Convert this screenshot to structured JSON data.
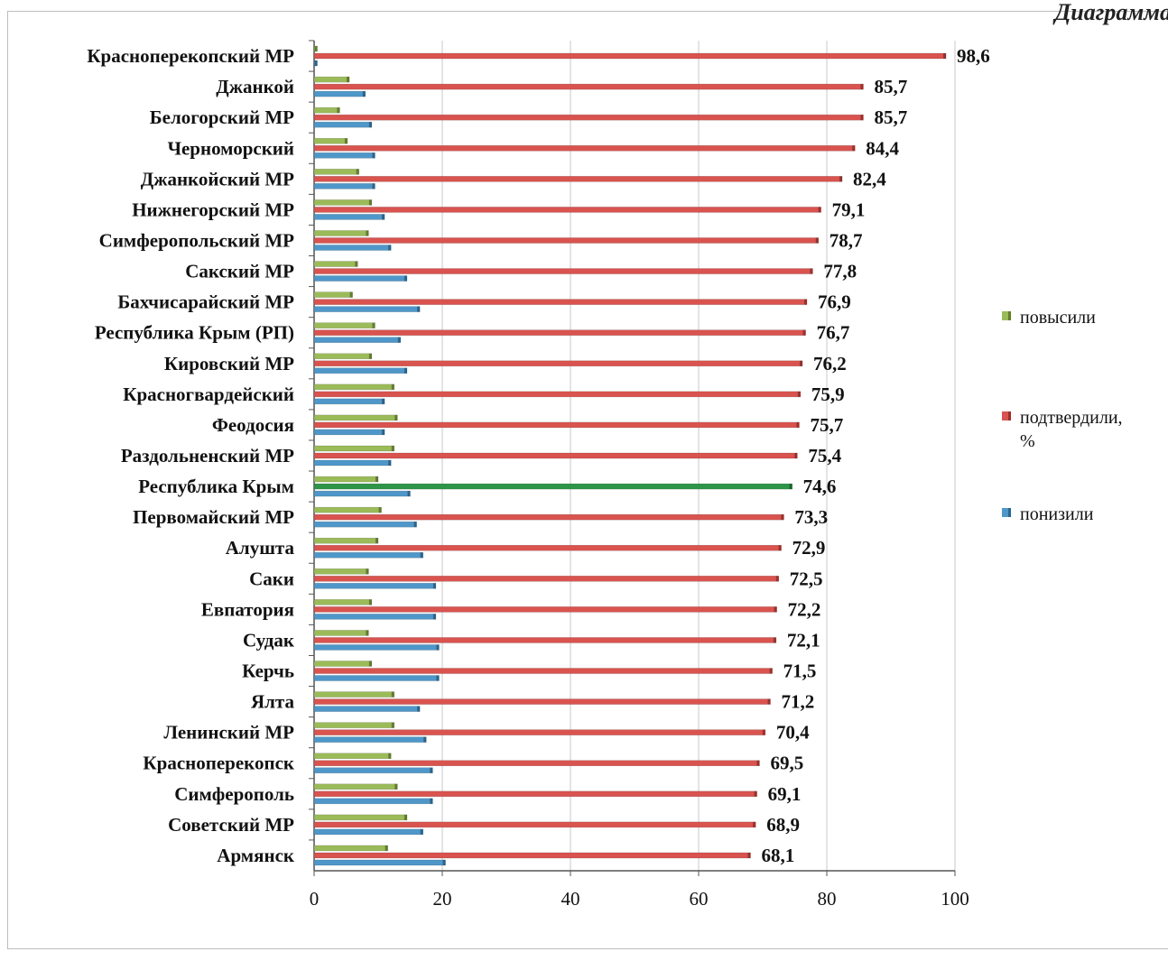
{
  "caption": "Диаграмма",
  "chart_data": {
    "type": "bar",
    "orientation": "horizontal",
    "categories": [
      "Красноперекопский МР",
      "Джанкой",
      "Белогорский МР",
      "Черноморский",
      "Джанкойский МР",
      "Нижнегорский МР",
      "Симферопольский МР",
      "Сакский МР",
      "Бахчисарайский МР",
      "Республика Крым (РП)",
      "Кировский МР",
      "Красногвардейский",
      "Феодосия",
      "Раздольненский МР",
      "Республика Крым",
      "Первомайский МР",
      "Алушта",
      "Саки",
      "Евпатория",
      "Судак",
      "Керчь",
      "Ялта",
      "Ленинский МР",
      "Красноперекопск",
      "Симферополь",
      "Советский МР",
      "Армянск"
    ],
    "series": [
      {
        "name": "повысили",
        "color": "#9bbb59",
        "values": [
          0.5,
          5.5,
          4,
          5.2,
          7,
          9,
          8.5,
          6.8,
          6,
          9.5,
          9,
          12.5,
          13,
          12.5,
          10,
          10.5,
          10,
          8.5,
          9,
          8.5,
          9,
          12.5,
          12.5,
          12,
          13,
          14.5,
          11.5
        ]
      },
      {
        "name": "подтвердили, %",
        "color": "#d9534f",
        "values": [
          98.6,
          85.7,
          85.7,
          84.4,
          82.4,
          79.1,
          78.7,
          77.8,
          76.9,
          76.7,
          76.2,
          75.9,
          75.7,
          75.4,
          74.6,
          73.3,
          72.9,
          72.5,
          72.2,
          72.1,
          71.5,
          71.2,
          70.4,
          69.5,
          69.1,
          68.9,
          68.1
        ]
      },
      {
        "name": "понизили",
        "color": "#4f97c9",
        "values": [
          0.5,
          8,
          9,
          9.5,
          9.5,
          11,
          12,
          14.5,
          16.5,
          13.5,
          14.5,
          11,
          11,
          12,
          15,
          16,
          17,
          19,
          19,
          19.5,
          19.5,
          16.5,
          17.5,
          18.5,
          18.5,
          17,
          20.5
        ]
      }
    ],
    "highlight": {
      "category": "Республика Крым",
      "color": "#2e9448"
    },
    "data_labels": [
      "98,6",
      "85,7",
      "85,7",
      "84,4",
      "82,4",
      "79,1",
      "78,7",
      "77,8",
      "76,9",
      "76,7",
      "76,2",
      "75,9",
      "75,7",
      "75,4",
      "74,6",
      "73,3",
      "72,9",
      "72,5",
      "72,2",
      "72,1",
      "71,5",
      "71,2",
      "70,4",
      "69,5",
      "69,1",
      "68,9",
      "68,1"
    ],
    "xlim": [
      0,
      100
    ],
    "xticks": [
      0,
      20,
      40,
      60,
      80,
      100
    ],
    "xtick_labels": [
      "0",
      "20",
      "40",
      "60",
      "80",
      "100"
    ],
    "grid": "vertical",
    "legend": {
      "placement": "right",
      "order": [
        "повысили",
        "подтвердили, %",
        "понизили"
      ]
    },
    "title": "",
    "xlabel": "",
    "ylabel": ""
  }
}
